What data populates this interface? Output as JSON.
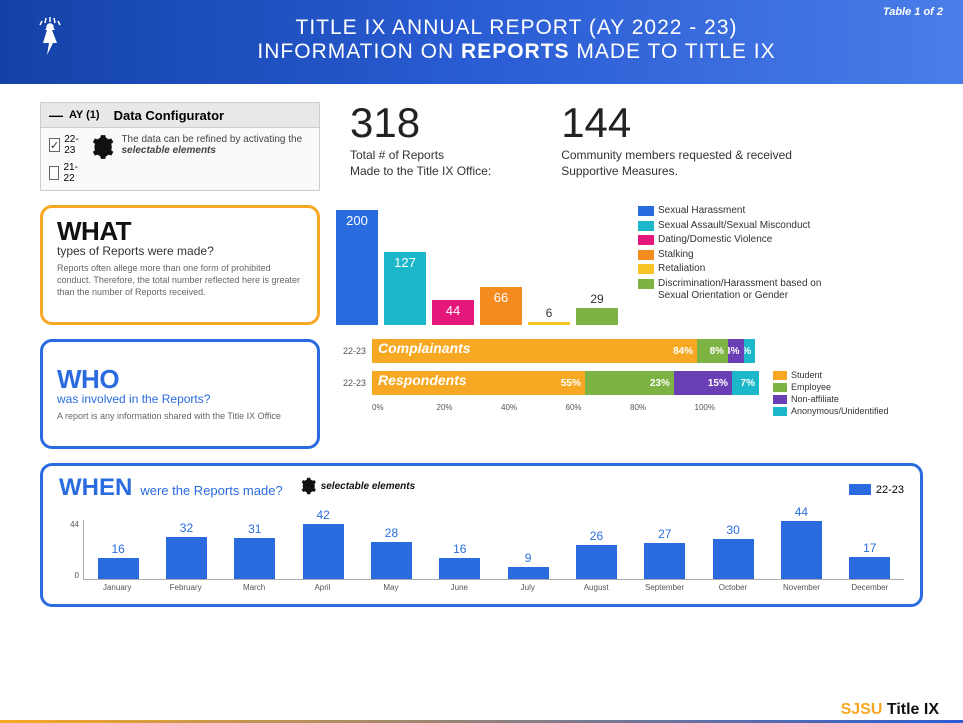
{
  "header": {
    "line1": "TITLE IX ANNUAL REPORT (AY 2022 - 23)",
    "line2_pre": "INFORMATION ON ",
    "line2_bold": "REPORTS",
    "line2_post": " MADE TO TITLE IX",
    "table_label": "Table 1 of 2"
  },
  "configurator": {
    "collapse_icon": "—",
    "ay_label": "AY (1)",
    "title": "Data Configurator",
    "options": [
      {
        "label": "22-23",
        "checked": true
      },
      {
        "label": "21-22",
        "checked": false
      }
    ],
    "desc_pre": "The data can be refined by activating the ",
    "desc_em": "selectable elements"
  },
  "stats": {
    "total": {
      "value": "318",
      "desc": "Total # of Reports\nMade to the Title IX Office:"
    },
    "support": {
      "value": "144",
      "desc": "Community members requested & received Supportive Measures."
    }
  },
  "colors": {
    "blue": "#2a6ce0",
    "teal": "#1cb8c9",
    "magenta": "#e6177a",
    "orange": "#f38b1e",
    "yellow": "#f7c426",
    "green": "#7cb342",
    "purple": "#6a3fb5",
    "legend_student": "#f7a823",
    "legend_employee": "#7cb342",
    "legend_nonaffiliate": "#6a3fb5",
    "legend_anon": "#1cb8c9",
    "when_bar": "#2a6ce0"
  },
  "what": {
    "title": "WHAT",
    "subtitle": "types of Reports were made?",
    "caption": "Reports often allege more than one form of prohibited conduct. Therefore, the total number reflected here is greater than the number of Reports received.",
    "chart": {
      "type": "bar",
      "max": 200,
      "bars": [
        {
          "value": 200,
          "color": "#2a6ce0",
          "label_inside": true
        },
        {
          "value": 127,
          "color": "#1cb8c9",
          "label_inside": true
        },
        {
          "value": 44,
          "color": "#e6177a",
          "label_inside": true
        },
        {
          "value": 66,
          "color": "#f38b1e",
          "label_inside": true
        },
        {
          "value": 6,
          "color": "#f7c426",
          "label_inside": false
        },
        {
          "value": 29,
          "color": "#7cb342",
          "label_inside": false
        }
      ],
      "legend": [
        {
          "label": "Sexual Harassment",
          "color": "#2a6ce0"
        },
        {
          "label": "Sexual Assault/Sexual Misconduct",
          "color": "#1cb8c9"
        },
        {
          "label": "Dating/Domestic Violence",
          "color": "#e6177a"
        },
        {
          "label": "Stalking",
          "color": "#f38b1e"
        },
        {
          "label": "Retaliation",
          "color": "#f7c426"
        },
        {
          "label": "Discrimination/Harassment based on Sexual Orientation or Gender",
          "color": "#7cb342"
        }
      ]
    }
  },
  "who": {
    "title": "WHO",
    "subtitle": "was involved in the Reports?",
    "caption": "A report is any information shared with the Title IX Office",
    "chart": {
      "type": "stacked-bar-horizontal",
      "ylabel": "22-23",
      "groups": [
        {
          "title": "Complainants",
          "segments": [
            {
              "pct": 84,
              "label": "84%",
              "color": "#f7a823"
            },
            {
              "pct": 8,
              "label": "8%",
              "color": "#7cb342"
            },
            {
              "pct": 4,
              "label": "4%",
              "color": "#6a3fb5"
            },
            {
              "pct": 3,
              "label": "3%",
              "color": "#1cb8c9"
            }
          ]
        },
        {
          "title": "Respondents",
          "segments": [
            {
              "pct": 55,
              "label": "55%",
              "color": "#f7a823"
            },
            {
              "pct": 23,
              "label": "23%",
              "color": "#7cb342"
            },
            {
              "pct": 15,
              "label": "15%",
              "color": "#6a3fb5"
            },
            {
              "pct": 7,
              "label": "7%",
              "color": "#1cb8c9"
            }
          ]
        }
      ],
      "xaxis": [
        "0%",
        "20%",
        "40%",
        "60%",
        "80%",
        "100%"
      ],
      "legend": [
        {
          "label": "Student",
          "color": "#f7a823"
        },
        {
          "label": "Employee",
          "color": "#7cb342"
        },
        {
          "label": "Non-affiliate",
          "color": "#6a3fb5"
        },
        {
          "label": "Anonymous/Unidentified",
          "color": "#1cb8c9"
        }
      ]
    }
  },
  "when": {
    "title": "WHEN",
    "subtitle": "were the Reports made?",
    "selectable": "selectable elements",
    "legend_label": "22-23",
    "chart": {
      "type": "bar",
      "ymax": 44,
      "yticks": [
        "44",
        "0"
      ],
      "months": [
        "January",
        "February",
        "March",
        "April",
        "May",
        "June",
        "July",
        "August",
        "September",
        "October",
        "November",
        "December"
      ],
      "values": [
        16,
        32,
        31,
        42,
        28,
        16,
        9,
        26,
        27,
        30,
        44,
        17
      ],
      "color": "#2a6ce0"
    }
  },
  "footer": {
    "sjsu": "SJSU",
    "title_ix": " Title IX"
  }
}
